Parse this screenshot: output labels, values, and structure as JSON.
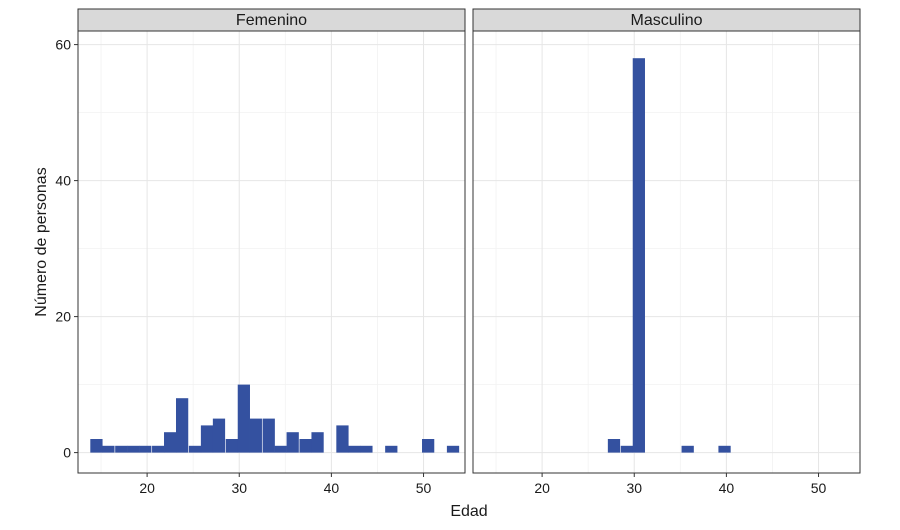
{
  "chart_data": {
    "type": "bar",
    "title": "",
    "xlabel": "Edad",
    "ylabel": "Número de personas",
    "xlim": [
      12.5,
      54.5
    ],
    "ylim": [
      -3,
      62
    ],
    "x_ticks": [
      20,
      30,
      40,
      50
    ],
    "y_ticks": [
      0,
      20,
      40,
      60
    ],
    "bin_width": 1.33,
    "bar_color": "#3451a0",
    "grid": true,
    "legend": "none",
    "panels": [
      {
        "name": "Femenino",
        "bins": [
          {
            "x": 14.5,
            "count": 2
          },
          {
            "x": 15.8,
            "count": 1
          },
          {
            "x": 17.2,
            "count": 1
          },
          {
            "x": 18.5,
            "count": 1
          },
          {
            "x": 19.8,
            "count": 1
          },
          {
            "x": 21.2,
            "count": 1
          },
          {
            "x": 22.5,
            "count": 3
          },
          {
            "x": 23.8,
            "count": 8
          },
          {
            "x": 25.2,
            "count": 1
          },
          {
            "x": 26.5,
            "count": 4
          },
          {
            "x": 27.8,
            "count": 5
          },
          {
            "x": 29.2,
            "count": 2
          },
          {
            "x": 30.5,
            "count": 10
          },
          {
            "x": 31.8,
            "count": 5
          },
          {
            "x": 33.2,
            "count": 5
          },
          {
            "x": 34.5,
            "count": 1
          },
          {
            "x": 35.8,
            "count": 3
          },
          {
            "x": 37.2,
            "count": 2
          },
          {
            "x": 38.5,
            "count": 3
          },
          {
            "x": 41.2,
            "count": 4
          },
          {
            "x": 42.5,
            "count": 1
          },
          {
            "x": 43.8,
            "count": 1
          },
          {
            "x": 46.5,
            "count": 1
          },
          {
            "x": 50.5,
            "count": 2
          },
          {
            "x": 53.2,
            "count": 1
          }
        ]
      },
      {
        "name": "Masculino",
        "bins": [
          {
            "x": 27.8,
            "count": 2
          },
          {
            "x": 29.2,
            "count": 1
          },
          {
            "x": 30.5,
            "count": 58
          },
          {
            "x": 35.8,
            "count": 1
          },
          {
            "x": 39.8,
            "count": 1
          }
        ]
      }
    ]
  }
}
